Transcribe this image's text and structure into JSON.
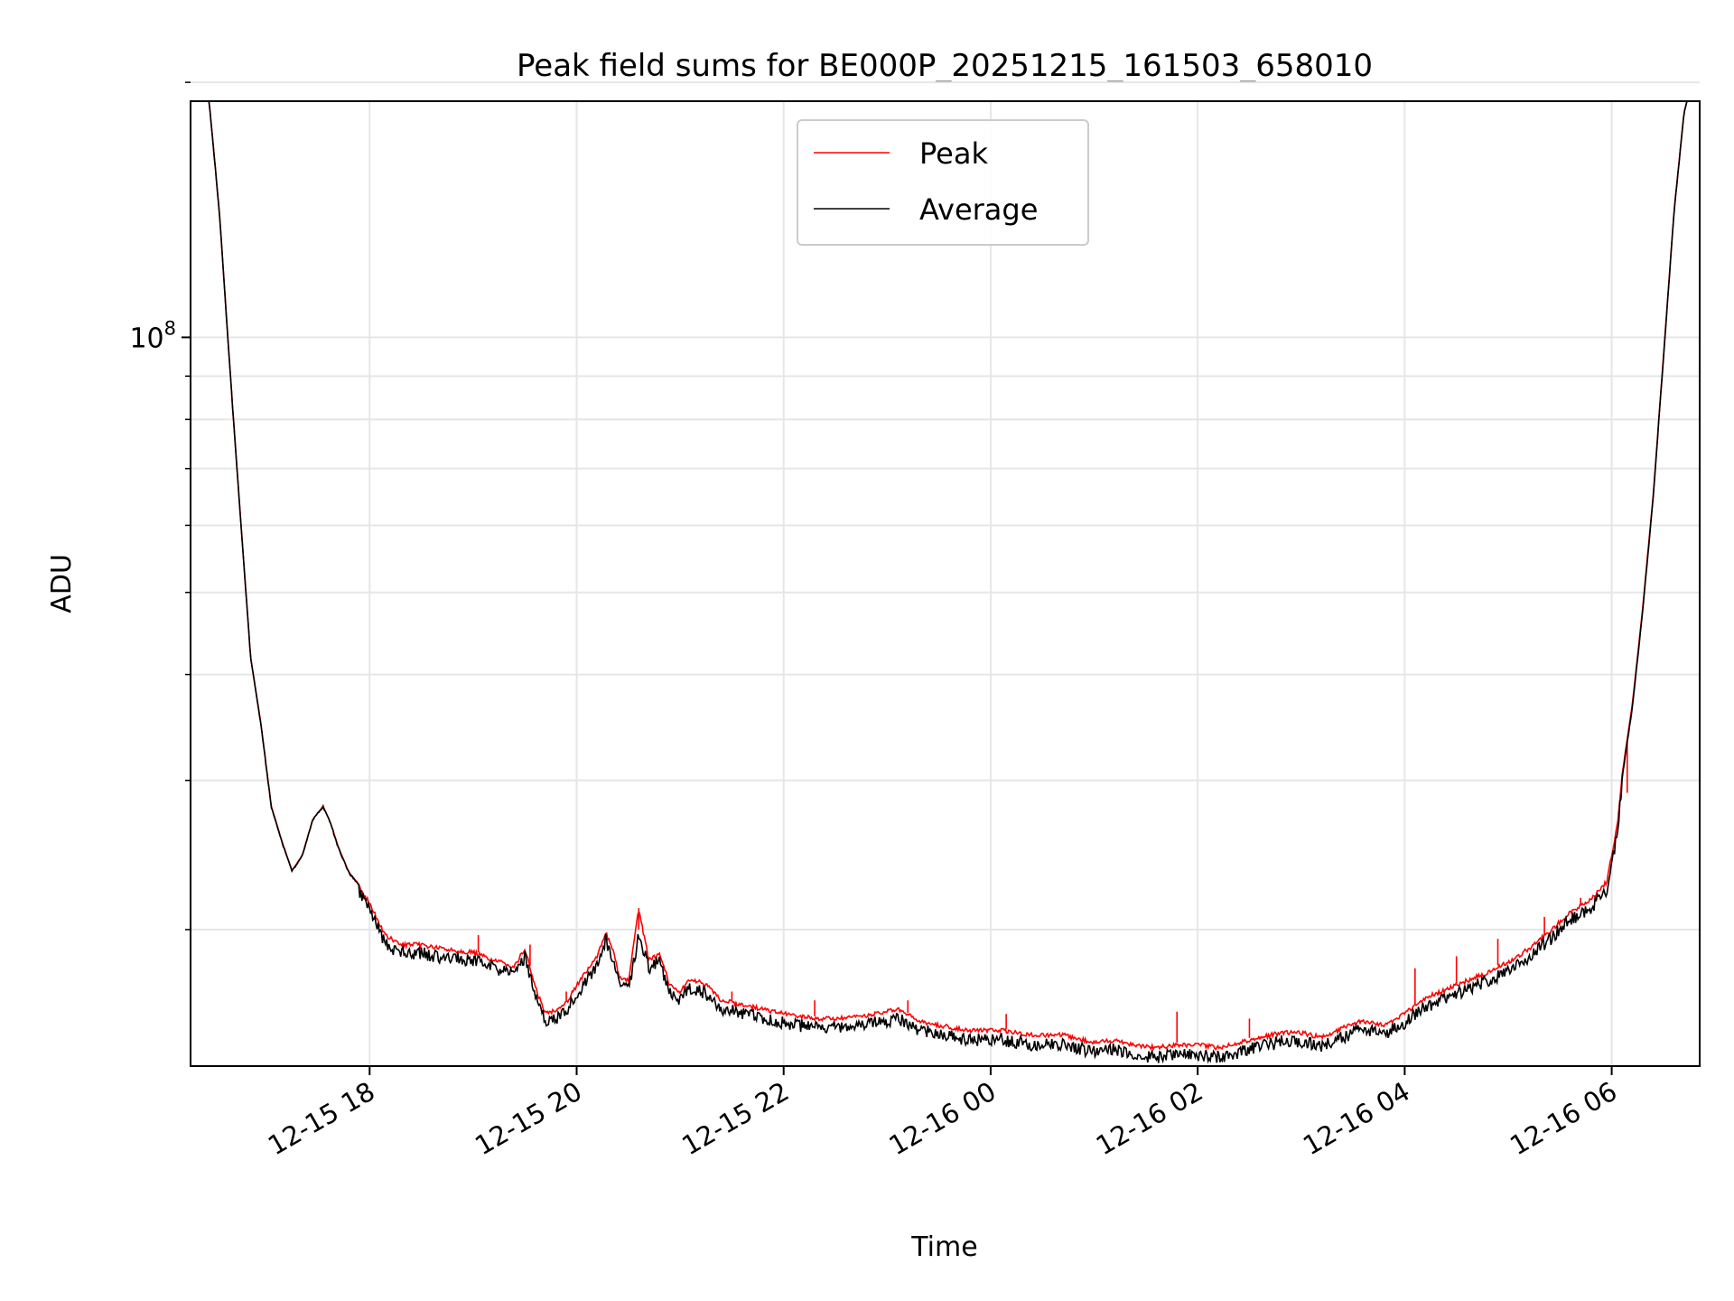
{
  "chart_data": {
    "type": "line",
    "title": "Peak field sums for BE000P_20251215_161503_658010",
    "xlabel": "Time",
    "ylabel": "ADU",
    "yscale": "log",
    "grid": true,
    "legend_position": "top-center",
    "x_units": "hours since 2025-12-15 00:00",
    "xlim": [
      16.27,
      30.85
    ],
    "ylim": [
      13800000,
      190000000
    ],
    "x_ticks": [
      {
        "value": 18,
        "label": "12-15 18"
      },
      {
        "value": 20,
        "label": "12-15 20"
      },
      {
        "value": 22,
        "label": "12-15 22"
      },
      {
        "value": 24,
        "label": "12-16 00"
      },
      {
        "value": 26,
        "label": "12-16 02"
      },
      {
        "value": 28,
        "label": "12-16 04"
      },
      {
        "value": 30,
        "label": "12-16 06"
      }
    ],
    "y_major_ticks": [
      {
        "value": 100000000,
        "base": "10",
        "exp": "8"
      }
    ],
    "y_minor_ticks": [
      20000000,
      30000000,
      40000000,
      50000000,
      60000000,
      70000000,
      80000000,
      90000000,
      200000000
    ],
    "series": [
      {
        "name": "Peak",
        "color": "#ff0000",
        "x": [
          16.27,
          16.45,
          16.55,
          16.65,
          16.75,
          16.85,
          16.95,
          17.05,
          17.15,
          17.25,
          17.35,
          17.45,
          17.55,
          17.62,
          17.7,
          17.8,
          17.9,
          18.0,
          18.15,
          18.3,
          18.5,
          18.7,
          19.0,
          19.2,
          19.4,
          19.5,
          19.6,
          19.7,
          19.8,
          19.9,
          20.0,
          20.2,
          20.28,
          20.35,
          20.42,
          20.5,
          20.6,
          20.7,
          20.8,
          20.9,
          21.0,
          21.1,
          21.25,
          21.4,
          21.6,
          21.8,
          22.0,
          22.3,
          22.6,
          22.9,
          23.1,
          23.3,
          23.5,
          23.8,
          24.1,
          24.4,
          24.7,
          25.0,
          25.2,
          25.4,
          25.6,
          25.8,
          26.0,
          26.2,
          26.5,
          26.8,
          27.0,
          27.2,
          27.4,
          27.6,
          27.8,
          28.0,
          28.2,
          28.4,
          28.6,
          28.8,
          29.0,
          29.2,
          29.4,
          29.6,
          29.8,
          29.95,
          30.05,
          30.1,
          30.2,
          30.3,
          30.4,
          30.5,
          30.6,
          30.7,
          30.75,
          30.8,
          30.85
        ],
        "y": [
          195000000,
          190000000,
          140000000,
          92000000,
          62000000,
          42000000,
          35000000,
          28000000,
          25500000,
          23500000,
          24500000,
          27000000,
          28000000,
          26800000,
          25000000,
          23400000,
          22600000,
          21600000,
          19800000,
          19300000,
          19300000,
          19100000,
          18900000,
          18500000,
          18200000,
          19100000,
          17200000,
          16000000,
          16200000,
          16500000,
          17300000,
          18700000,
          20000000,
          19000000,
          17600000,
          17500000,
          21200000,
          18500000,
          18900000,
          17300000,
          17000000,
          17600000,
          17300000,
          16600000,
          16400000,
          16200000,
          16000000,
          15800000,
          15800000,
          16000000,
          16200000,
          15700000,
          15500000,
          15300000,
          15300000,
          15100000,
          15100000,
          14800000,
          14900000,
          14700000,
          14600000,
          14700000,
          14700000,
          14600000,
          14900000,
          15200000,
          15200000,
          15000000,
          15400000,
          15700000,
          15500000,
          16000000,
          16700000,
          17100000,
          17500000,
          17900000,
          18400000,
          19100000,
          20000000,
          21100000,
          21800000,
          22900000,
          26500000,
          30500000,
          37000000,
          48000000,
          65000000,
          95000000,
          140000000,
          185000000,
          195000000,
          195000000,
          195000000
        ],
        "spikes": [
          {
            "x": 19.05,
            "y": 19700000
          },
          {
            "x": 19.55,
            "y": 19200000
          },
          {
            "x": 19.9,
            "y": 16900000
          },
          {
            "x": 20.6,
            "y": 20000000
          },
          {
            "x": 21.5,
            "y": 16900000
          },
          {
            "x": 22.3,
            "y": 16500000
          },
          {
            "x": 23.2,
            "y": 16500000
          },
          {
            "x": 24.15,
            "y": 15900000
          },
          {
            "x": 25.8,
            "y": 16000000
          },
          {
            "x": 26.5,
            "y": 15700000
          },
          {
            "x": 28.1,
            "y": 18000000
          },
          {
            "x": 28.5,
            "y": 18600000
          },
          {
            "x": 28.9,
            "y": 19500000
          },
          {
            "x": 29.35,
            "y": 20700000
          },
          {
            "x": 29.7,
            "y": 21800000
          },
          {
            "x": 30.15,
            "y": 29000000
          }
        ]
      },
      {
        "name": "Average",
        "color": "#000000",
        "x": [
          16.27,
          16.45,
          16.55,
          16.65,
          16.75,
          16.85,
          16.95,
          17.05,
          17.15,
          17.25,
          17.35,
          17.45,
          17.55,
          17.62,
          17.7,
          17.8,
          17.9,
          18.0,
          18.15,
          18.3,
          18.5,
          18.7,
          19.0,
          19.2,
          19.4,
          19.5,
          19.6,
          19.7,
          19.8,
          19.9,
          20.0,
          20.2,
          20.28,
          20.35,
          20.42,
          20.5,
          20.6,
          20.7,
          20.8,
          20.9,
          21.0,
          21.1,
          21.25,
          21.4,
          21.6,
          21.8,
          22.0,
          22.3,
          22.6,
          22.9,
          23.1,
          23.3,
          23.5,
          23.8,
          24.1,
          24.4,
          24.7,
          25.0,
          25.2,
          25.4,
          25.6,
          25.8,
          26.0,
          26.2,
          26.5,
          26.8,
          27.0,
          27.2,
          27.4,
          27.6,
          27.8,
          28.0,
          28.2,
          28.4,
          28.6,
          28.8,
          29.0,
          29.2,
          29.4,
          29.6,
          29.8,
          29.95,
          30.05,
          30.1,
          30.2,
          30.3,
          30.4,
          30.5,
          30.6,
          30.7,
          30.75,
          30.8,
          30.85
        ],
        "y": [
          195000000,
          190000000,
          140000000,
          92000000,
          62000000,
          42000000,
          35000000,
          28000000,
          25500000,
          23500000,
          24500000,
          27000000,
          28000000,
          26800000,
          25000000,
          23400000,
          22600000,
          21600000,
          19600000,
          19100000,
          19100000,
          18900000,
          18700000,
          18300000,
          18000000,
          18900000,
          17000000,
          15800000,
          16000000,
          16300000,
          17100000,
          18500000,
          19800000,
          18800000,
          17400000,
          17300000,
          20000000,
          18300000,
          18700000,
          17100000,
          16800000,
          17400000,
          17100000,
          16400000,
          16200000,
          16000000,
          15800000,
          15600000,
          15600000,
          15800000,
          16000000,
          15500000,
          15300000,
          15100000,
          15100000,
          14900000,
          14900000,
          14600000,
          14700000,
          14500000,
          14400000,
          14500000,
          14500000,
          14400000,
          14700000,
          15000000,
          15000000,
          14800000,
          15200000,
          15500000,
          15300000,
          15800000,
          16500000,
          16900000,
          17300000,
          17700000,
          18200000,
          18900000,
          19800000,
          20900000,
          21600000,
          22700000,
          26200000,
          30200000,
          36700000,
          47700000,
          64700000,
          94700000,
          139700000,
          185000000,
          195000000,
          195000000,
          195000000
        ]
      }
    ]
  }
}
